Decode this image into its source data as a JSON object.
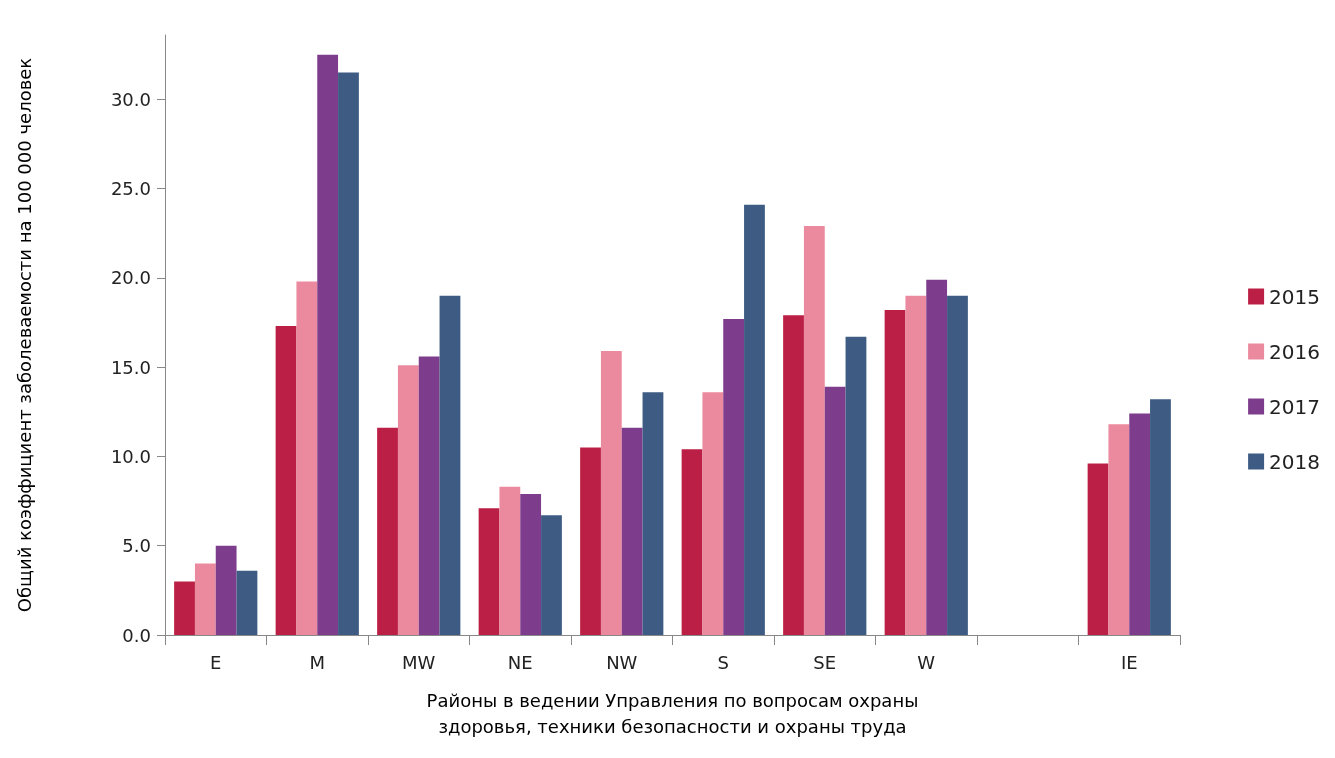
{
  "chart_data": {
    "type": "bar",
    "xlabel": "Районы в ведении Управления по вопросам охраны\nздоровья, техники безопасности и охраны труда",
    "ylabel": "Общий коэффициент заболеваемости на 100 000 человек",
    "categories": [
      "E",
      "M",
      "MW",
      "NE",
      "NW",
      "S",
      "SE",
      "W",
      null,
      "IE"
    ],
    "series": [
      {
        "name": "2015",
        "color": "#bc1f45",
        "values": [
          3.0,
          17.3,
          11.6,
          7.1,
          10.5,
          10.4,
          17.9,
          18.2,
          null,
          9.6
        ]
      },
      {
        "name": "2016",
        "color": "#eb8a9e",
        "values": [
          4.0,
          19.8,
          15.1,
          8.3,
          15.9,
          13.6,
          22.9,
          19.0,
          null,
          11.8
        ]
      },
      {
        "name": "2017",
        "color": "#7e3c8c",
        "values": [
          5.0,
          32.5,
          15.6,
          7.9,
          11.6,
          17.7,
          13.9,
          19.9,
          null,
          12.4
        ]
      },
      {
        "name": "2018",
        "color": "#3d5b83",
        "values": [
          3.6,
          31.5,
          19.0,
          6.7,
          13.6,
          24.1,
          16.7,
          19.0,
          null,
          13.2
        ]
      }
    ],
    "ylim": [
      0,
      33.6
    ],
    "yticks": [
      {
        "value": 0,
        "label": "0.0"
      },
      {
        "value": 5,
        "label": "5.0"
      },
      {
        "value": 10,
        "label": "10.0"
      },
      {
        "value": 15,
        "label": "15.0"
      },
      {
        "value": 20,
        "label": "20.0"
      },
      {
        "value": 25,
        "label": "25.0"
      },
      {
        "value": 30,
        "label": "30.0"
      }
    ],
    "grid": false,
    "legend": "right"
  }
}
